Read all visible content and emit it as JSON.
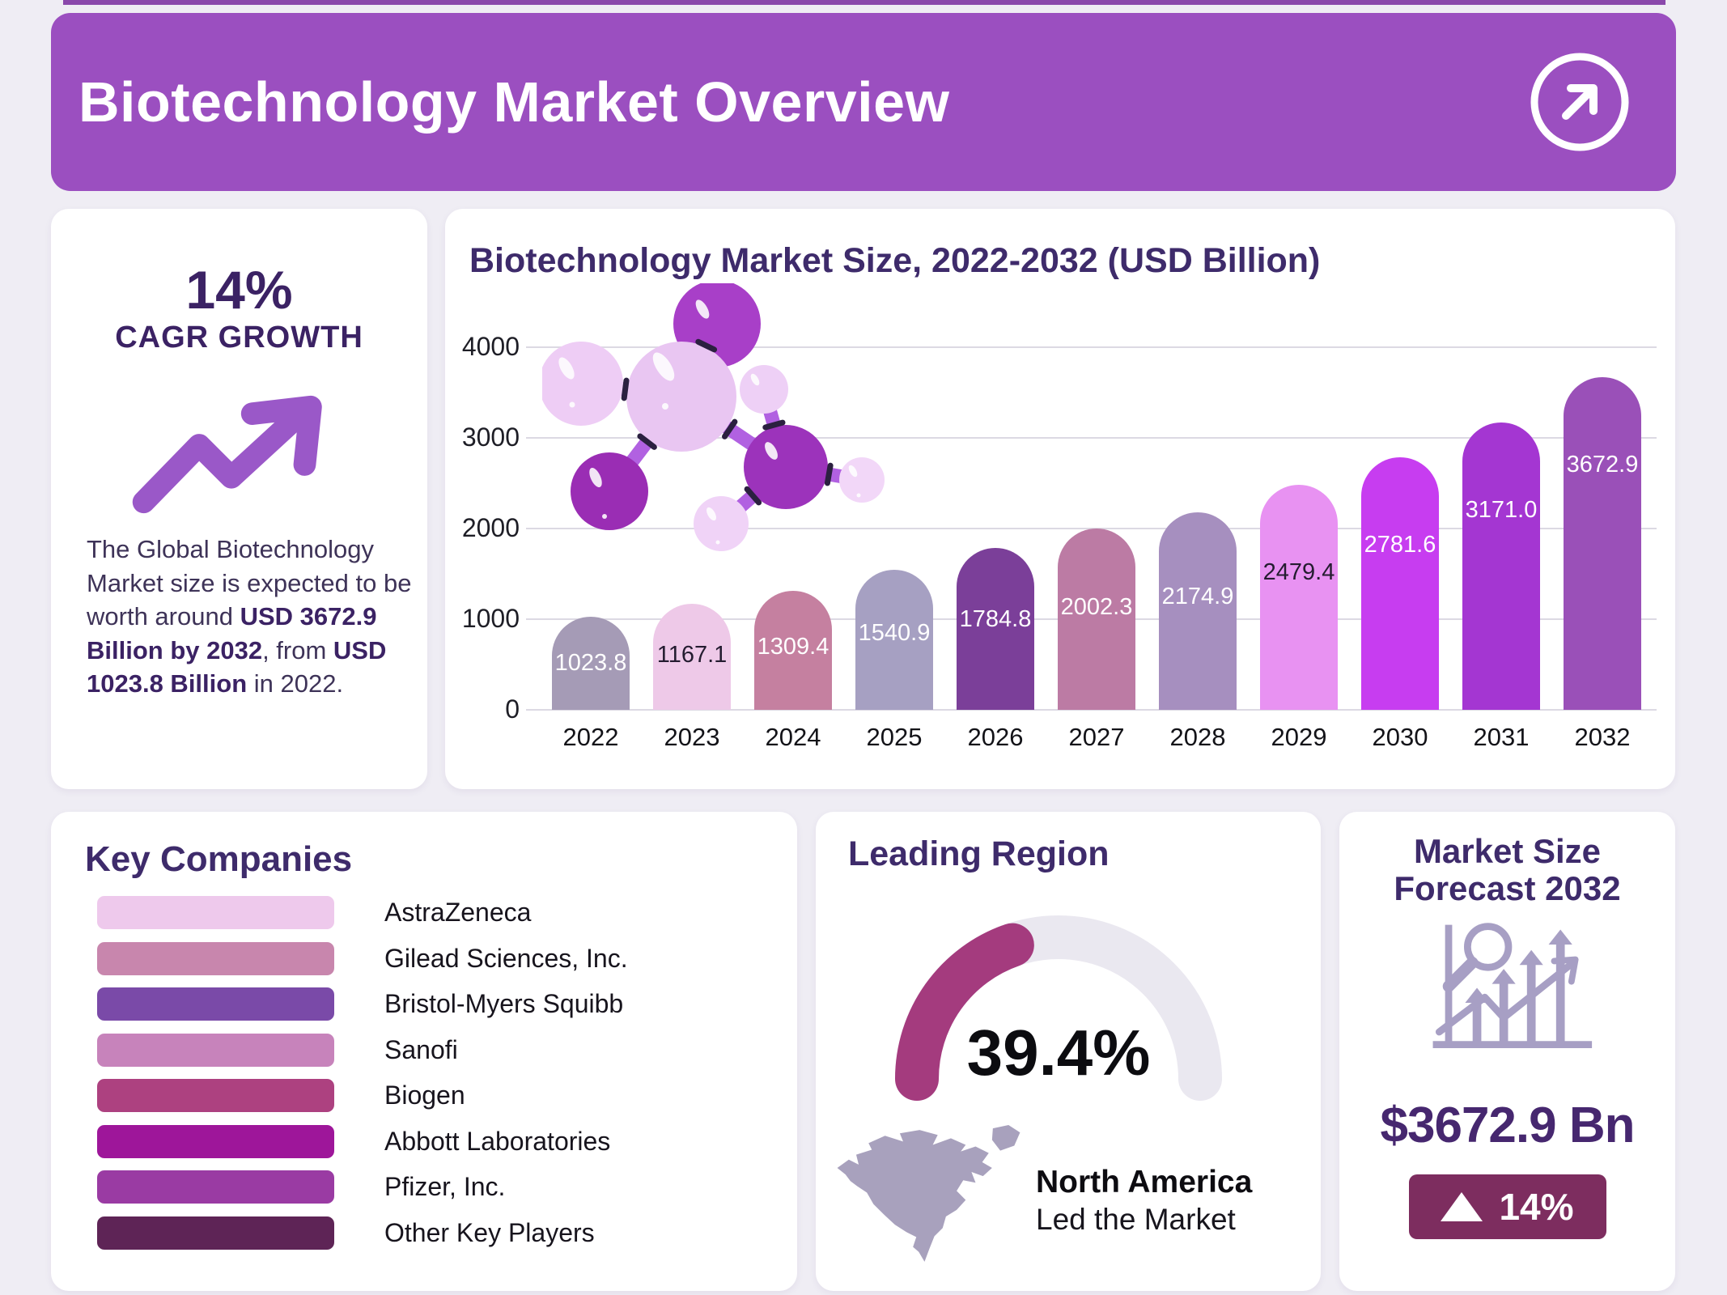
{
  "colors": {
    "page_bg": "#efedf4",
    "strip": "#8a48ab",
    "header_bg": "#9b4fc0",
    "deep_purple": "#3b2264",
    "title_purple": "#3e2b6b",
    "forecast_value": "#46276f",
    "paragraph": "#3e3358"
  },
  "header": {
    "title": "Biotechnology Market Overview",
    "icon": "arrow-up-right-circle-icon"
  },
  "cagr_card": {
    "value": "14%",
    "label": "CAGR GROWTH",
    "arrow_color": "#9a58c8",
    "icon": "trending-up-icon",
    "description_segments": [
      {
        "text": "The Global Biotechnology Market size is expected to be worth around ",
        "bold": false
      },
      {
        "text": "USD 3672.9 Billion by 2032",
        "bold": true
      },
      {
        "text": ", from ",
        "bold": false
      },
      {
        "text": "USD 1023.8 Billion",
        "bold": true
      },
      {
        "text": " in 2022.",
        "bold": false
      }
    ]
  },
  "chart_data": {
    "type": "bar",
    "title": "Biotechnology Market Size, 2022-2032 (USD Billion)",
    "categories": [
      "2022",
      "2023",
      "2024",
      "2025",
      "2026",
      "2027",
      "2028",
      "2029",
      "2030",
      "2031",
      "2032"
    ],
    "values": [
      1023.8,
      1167.1,
      1309.4,
      1540.9,
      1784.8,
      2002.3,
      2174.9,
      2479.4,
      2781.6,
      3171.0,
      3672.9
    ],
    "value_labels": [
      "1023.8",
      "1167.1",
      "1309.4",
      "1540.9",
      "1784.8",
      "2002.3",
      "2174.9",
      "2479.4",
      "2781.6",
      "3171.0",
      "3672.9"
    ],
    "bar_colors": [
      "#a59bb6",
      "#eec9e8",
      "#c580a0",
      "#a6a0c2",
      "#7b3f99",
      "#bc7ba4",
      "#a68fbf",
      "#e892f2",
      "#c73df0",
      "#a436d2",
      "#9a50b8"
    ],
    "value_label_colors": [
      "#ffffff",
      "#241c30",
      "#ffffff",
      "#ffffff",
      "#ffffff",
      "#ffffff",
      "#ffffff",
      "#241c30",
      "#ffffff",
      "#ffffff",
      "#ffffff"
    ],
    "xlabel": "",
    "ylabel": "",
    "ylim": [
      0,
      4000
    ],
    "yticks": [
      0,
      1000,
      2000,
      3000,
      4000
    ],
    "grid": true,
    "legend": "none"
  },
  "key_companies": {
    "title": "Key Companies",
    "items": [
      {
        "name": "AstraZeneca",
        "color": "#eec9ec"
      },
      {
        "name": "Gilead Sciences, Inc.",
        "color": "#c886ad"
      },
      {
        "name": "Bristol-Myers Squibb",
        "color": "#7a4aa8"
      },
      {
        "name": "Sanofi",
        "color": "#c783bb"
      },
      {
        "name": "Biogen",
        "color": "#ad4180"
      },
      {
        "name": "Abbott Laboratories",
        "color": "#9e169a"
      },
      {
        "name": "Pfizer, Inc.",
        "color": "#9a3ba3"
      },
      {
        "name": "Other Key Players",
        "color": "#5e2456"
      }
    ]
  },
  "leading_region": {
    "title": "Leading Region",
    "share_label": "39.4%",
    "share_pct": 39.4,
    "gauge_color": "#a43b7e",
    "track_color": "#eae8f0",
    "region": "North America",
    "region_sub": "Led the Market",
    "map_icon": "north-america-map-icon",
    "map_color": "#a8a1bd"
  },
  "forecast": {
    "title_lines": [
      "Market Size",
      "Forecast 2032"
    ],
    "icon": "market-analysis-icon",
    "icon_color": "#a79fc4",
    "value": "$3672.9 Bn",
    "delta": "14%",
    "delta_direction": "up",
    "badge_color": "#7d2d5f"
  }
}
